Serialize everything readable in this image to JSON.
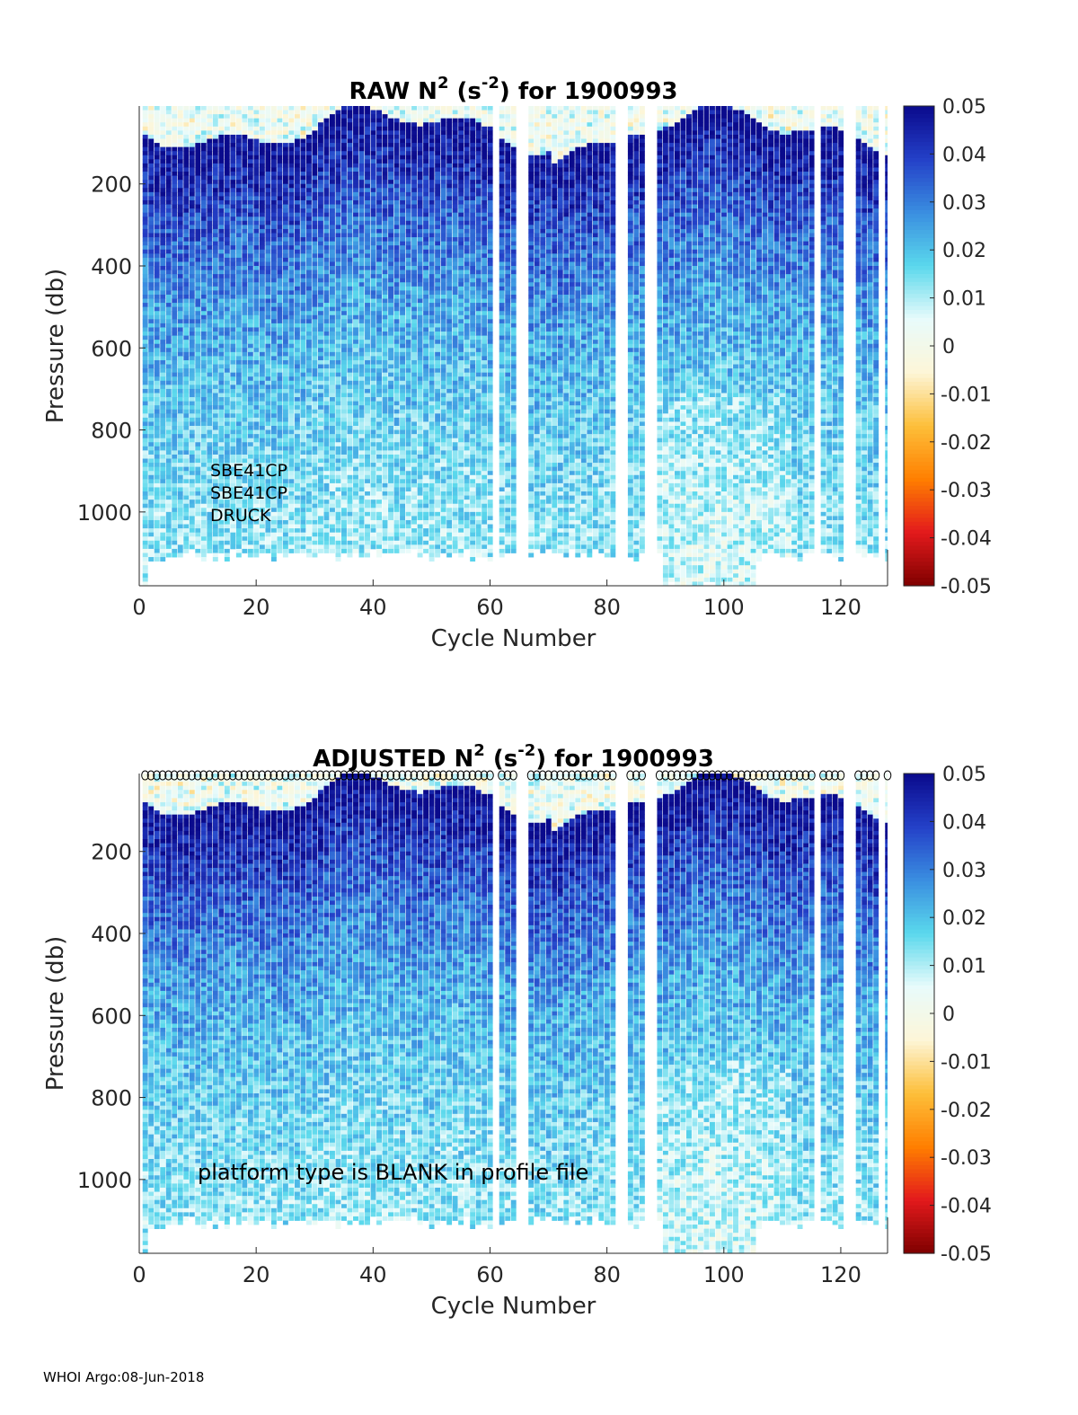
{
  "footer": "WHOI Argo:08-Jun-2018",
  "colors": {
    "colormap": [
      "#7f0000",
      "#e31a1c",
      "#ff7f00",
      "#fdbf3a",
      "#fdf6d8",
      "#e8fbfb",
      "#5ad8ec",
      "#3a8ee0",
      "#2440c8",
      "#0a0a8c"
    ],
    "nan": "#ffffff",
    "marker": "#000000"
  },
  "chart_data": [
    {
      "type": "heatmap",
      "title_prefix": "RAW N",
      "title_sup1": "2",
      "title_mid": " (s",
      "title_sup2": "-2",
      "title_suffix": ") for 1900993",
      "xlabel": "Cycle Number",
      "ylabel": "Pressure (db)",
      "xlim": [
        0,
        128
      ],
      "ylim": [
        10,
        1180
      ],
      "xticks": [
        0,
        20,
        40,
        60,
        80,
        100,
        120
      ],
      "yticks": [
        200,
        400,
        600,
        800,
        1000
      ],
      "clim": [
        -0.05,
        0.05
      ],
      "cticks": [
        "0.05",
        "0.04",
        "0.03",
        "0.02",
        "0.01",
        "0",
        "-0.01",
        "-0.02",
        "-0.03",
        "-0.04",
        "-0.05"
      ],
      "missing_cycles": [
        61,
        65,
        66,
        82,
        83,
        87,
        88,
        116,
        121,
        122,
        127
      ],
      "max_pressure": 1100,
      "annotations": [
        "SBE41CP",
        "SBE41CP",
        "DRUCK"
      ],
      "show_markers": false
    },
    {
      "type": "heatmap",
      "title_prefix": "ADJUSTED N",
      "title_sup1": "2",
      "title_mid": " (s",
      "title_sup2": "-2",
      "title_suffix": ") for 1900993",
      "xlabel": "Cycle Number",
      "ylabel": "Pressure (db)",
      "xlim": [
        0,
        128
      ],
      "ylim": [
        10,
        1180
      ],
      "xticks": [
        0,
        20,
        40,
        60,
        80,
        100,
        120
      ],
      "yticks": [
        200,
        400,
        600,
        800,
        1000
      ],
      "clim": [
        -0.05,
        0.05
      ],
      "cticks": [
        "0.05",
        "0.04",
        "0.03",
        "0.02",
        "0.01",
        "0",
        "-0.01",
        "-0.02",
        "-0.03",
        "-0.04",
        "-0.05"
      ],
      "missing_cycles": [
        61,
        65,
        66,
        82,
        83,
        87,
        88,
        116,
        121,
        122,
        127
      ],
      "max_pressure": 1100,
      "annotations": [
        "platform type is BLANK in profile file"
      ],
      "show_markers": true
    }
  ]
}
